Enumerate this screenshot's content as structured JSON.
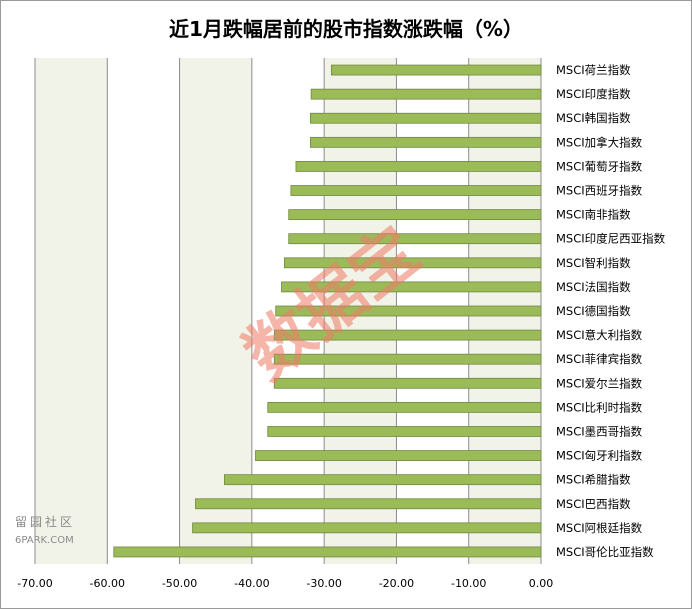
{
  "chart_data": {
    "type": "bar",
    "orientation": "horizontal",
    "title": "近1月跌幅居前的股市指数涨跌幅（%）",
    "categories": [
      "MSCI荷兰指数",
      "MSCI印度指数",
      "MSCI韩国指数",
      "MSCI加拿大指数",
      "MSCI葡萄牙指数",
      "MSCI西班牙指数",
      "MSCI南非指数",
      "MSCI印度尼西亚指数",
      "MSCI智利指数",
      "MSCI法国指数",
      "MSCI德国指数",
      "MSCI意大利指数",
      "MSCI菲律宾指数",
      "MSCI爱尔兰指数",
      "MSCI比利时指数",
      "MSCI墨西哥指数",
      "MSCI匈牙利指数",
      "MSCI希腊指数",
      "MSCI巴西指数",
      "MSCI阿根廷指数",
      "MSCI哥伦比亚指数"
    ],
    "values": [
      -29.0,
      -31.8,
      -31.9,
      -31.9,
      -33.9,
      -34.6,
      -34.9,
      -34.9,
      -35.5,
      -35.9,
      -36.7,
      -36.9,
      -36.9,
      -36.9,
      -37.8,
      -37.8,
      -39.5,
      -43.8,
      -47.8,
      -48.2,
      -59.1
    ],
    "xlim": [
      -70,
      0
    ],
    "xticks": [
      "-70.00",
      "-60.00",
      "-50.00",
      "-40.00",
      "-30.00",
      "-20.00",
      "-10.00",
      "0.00"
    ],
    "xtick_values": [
      -70,
      -60,
      -50,
      -40,
      -30,
      -20,
      -10,
      0
    ],
    "grid": true,
    "legend": "none",
    "colors": {
      "bar_fill": "#9bbb59",
      "bar_stroke": "#71893f",
      "band_fill": "#f1f3e9",
      "gridline": "#8c8c8c"
    }
  },
  "watermark": "数据宝",
  "site_logo": {
    "chinese": "留园社区",
    "english": "6PARK.COM"
  }
}
